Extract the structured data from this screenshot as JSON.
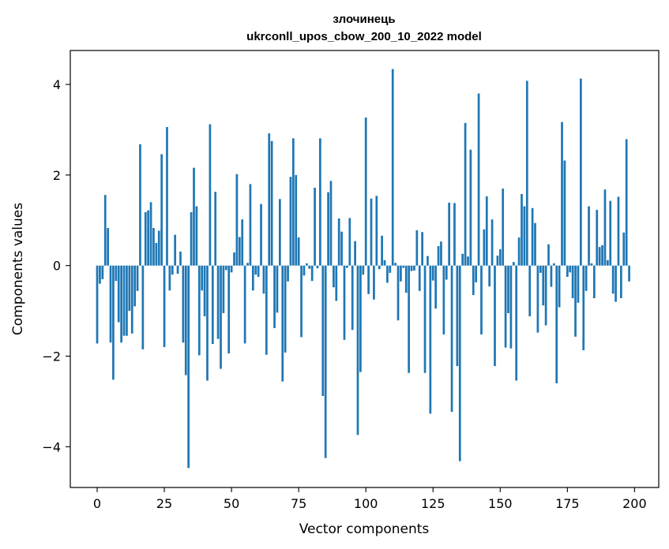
{
  "chart_data": {
    "type": "bar",
    "title": "злочинець",
    "subtitle": "ukrconll_upos_cbow_200_10_2022 model",
    "xlabel": "Vector components",
    "ylabel": "Components values",
    "xlim": [
      -10,
      209
    ],
    "ylim": [
      -4.9,
      4.75
    ],
    "x_ticks": [
      0,
      25,
      50,
      75,
      100,
      125,
      150,
      175,
      200
    ],
    "y_ticks": [
      -4,
      -2,
      0,
      2,
      4
    ],
    "y_tick_labels": [
      "−4",
      "−2",
      "0",
      "2",
      "4"
    ],
    "grid": false,
    "bar_color": "#1f77b4",
    "values": [
      -1.72,
      -0.4,
      -0.3,
      1.56,
      0.83,
      -1.7,
      -2.52,
      -0.34,
      -1.25,
      -1.7,
      -1.55,
      -1.55,
      -1.0,
      -1.5,
      -0.9,
      -0.56,
      2.68,
      -1.85,
      1.18,
      1.22,
      1.4,
      0.83,
      0.5,
      0.77,
      2.46,
      -1.8,
      3.06,
      -0.55,
      -0.2,
      0.68,
      -0.18,
      0.31,
      -1.7,
      -2.42,
      -4.47,
      1.18,
      2.16,
      1.31,
      -1.98,
      -0.55,
      -1.12,
      -2.54,
      3.12,
      -1.73,
      1.63,
      -1.62,
      -2.28,
      -1.05,
      -0.1,
      -1.94,
      -0.15,
      0.29,
      2.02,
      0.63,
      1.02,
      -1.72,
      0.06,
      1.8,
      -0.55,
      -0.2,
      -0.25,
      1.36,
      -0.62,
      -1.97,
      2.92,
      2.75,
      -1.38,
      -1.04,
      1.47,
      -2.56,
      -1.92,
      -0.35,
      1.96,
      2.81,
      2.0,
      0.62,
      -1.58,
      -0.22,
      0.05,
      -0.07,
      -0.34,
      1.72,
      -0.06,
      2.81,
      -2.88,
      -4.25,
      1.62,
      1.87,
      -0.48,
      -0.78,
      1.04,
      0.75,
      -1.64,
      -0.05,
      1.05,
      -1.42,
      0.54,
      -3.74,
      -2.35,
      -0.2,
      3.27,
      -0.63,
      1.48,
      -0.75,
      1.54,
      -0.08,
      0.66,
      0.12,
      -0.38,
      -0.16,
      4.34,
      0.06,
      -1.21,
      -0.35,
      -0.05,
      -0.6,
      -2.37,
      -0.12,
      -0.11,
      0.78,
      -0.56,
      0.74,
      -2.37,
      0.21,
      -3.27,
      -0.33,
      -0.95,
      0.43,
      0.53,
      -1.52,
      -0.31,
      1.39,
      -3.23,
      1.38,
      -2.22,
      -4.32,
      0.26,
      3.15,
      0.2,
      2.56,
      -0.65,
      -0.37,
      3.8,
      -1.52,
      0.8,
      1.53,
      -0.46,
      1.02,
      -2.22,
      0.22,
      0.36,
      1.7,
      -1.81,
      -1.05,
      -1.83,
      0.08,
      -2.54,
      0.62,
      1.58,
      1.31,
      4.08,
      -1.12,
      1.27,
      0.94,
      -1.48,
      -0.16,
      -0.88,
      -1.32,
      0.47,
      -0.47,
      0.05,
      -2.6,
      -0.92,
      3.17,
      2.32,
      -0.25,
      -0.15,
      -0.72,
      -1.57,
      -0.82,
      4.13,
      -1.87,
      -0.56,
      1.31,
      0.05,
      -0.72,
      1.23,
      0.41,
      0.45,
      1.68,
      0.12,
      1.43,
      -0.62,
      -0.8,
      1.52,
      -0.72,
      0.73,
      2.79,
      -0.35,
      0.0
    ]
  }
}
